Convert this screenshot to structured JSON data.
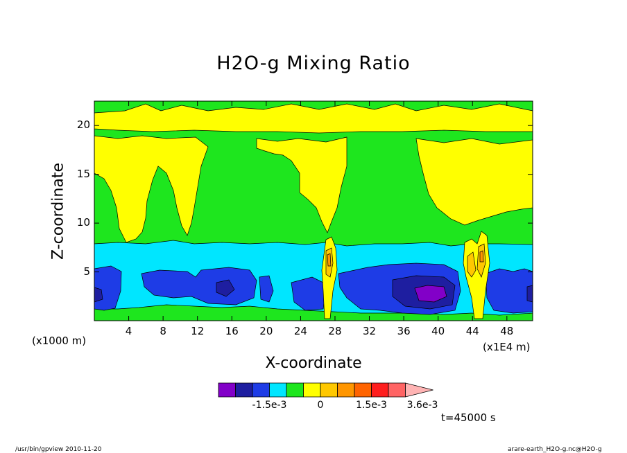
{
  "chart_data": {
    "type": "heatmap",
    "title": "H2O-g Mixing Ratio",
    "xlabel": "X-coordinate",
    "ylabel": "Z-coordinate",
    "x_unit_left": "(x1000 m)",
    "x_unit_right": "(x1E4 m)",
    "xlim": [
      0,
      51
    ],
    "ylim": [
      0,
      22.5
    ],
    "x_ticks": [
      4,
      8,
      12,
      16,
      20,
      24,
      28,
      32,
      36,
      40,
      44,
      48
    ],
    "y_ticks": [
      5,
      10,
      15,
      20
    ],
    "colorbar": {
      "colors": [
        "#8200c8",
        "#1e1ea0",
        "#1e3ce6",
        "#00e6ff",
        "#1ee61e",
        "#ffff00",
        "#ffc800",
        "#ff9600",
        "#ff6400",
        "#ff1e1e",
        "#ff6464",
        "#ffb4b4"
      ],
      "labels": [
        "-1.5e-3",
        "0",
        "1.5e-3",
        "3.6e-3"
      ],
      "bounds": [
        -0.003,
        -0.0025,
        -0.002,
        -0.0015,
        -0.001,
        -0.0005,
        0,
        0.0005,
        0.001,
        0.0015,
        0.0021,
        0.0028,
        0.0036
      ]
    },
    "grid": false,
    "legend": "bottom-colorbar"
  },
  "time_label": "t=45000 s",
  "footer": {
    "left": "/usr/bin/gpview  2010-11-20",
    "right": "arare-earth_H2O-g.nc@H2O-g"
  }
}
